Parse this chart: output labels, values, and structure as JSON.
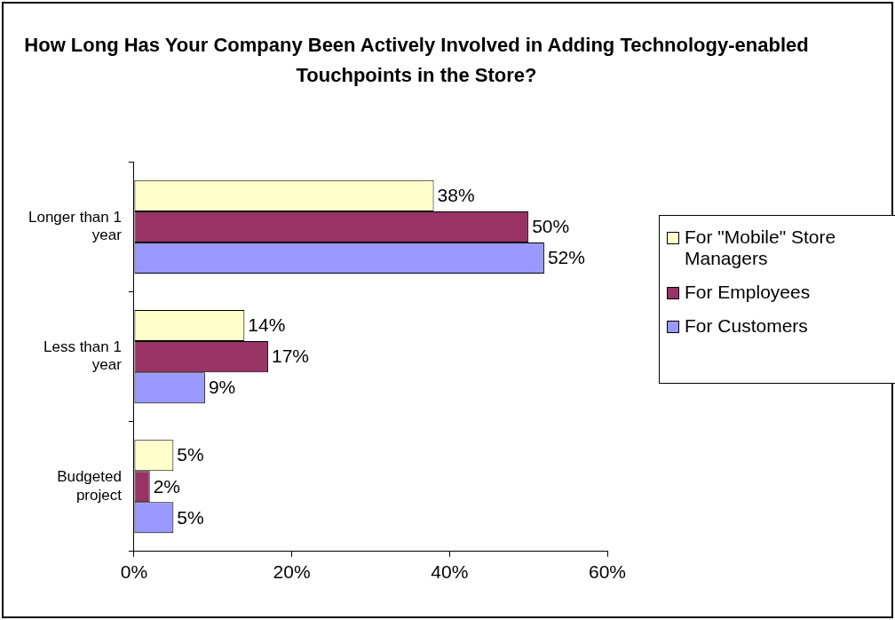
{
  "chart_data": {
    "type": "bar",
    "orientation": "horizontal",
    "title": "How Long Has Your Company Been Actively Involved in Adding Technology-enabled Touchpoints in the Store?",
    "categories": [
      "Longer than 1 year",
      "Less than 1 year",
      "Budgeted project"
    ],
    "series": [
      {
        "name": "For \"Mobile\" Store Managers",
        "color": "#ffffcc",
        "values": [
          38,
          14,
          5
        ],
        "value_labels": [
          "38%",
          "14%",
          "5%"
        ]
      },
      {
        "name": "For Employees",
        "color": "#993366",
        "values": [
          50,
          17,
          2
        ],
        "value_labels": [
          "50%",
          "17%",
          "2%"
        ]
      },
      {
        "name": "For Customers",
        "color": "#9999ff",
        "values": [
          52,
          9,
          5
        ],
        "value_labels": [
          "52%",
          "9%",
          "5%"
        ]
      }
    ],
    "xlim": [
      0,
      60
    ],
    "xticks": [
      {
        "value": 0,
        "label": "0%"
      },
      {
        "value": 20,
        "label": "20%"
      },
      {
        "value": 40,
        "label": "40%"
      },
      {
        "value": 60,
        "label": "60%"
      }
    ],
    "grid": false,
    "legend": "right"
  }
}
